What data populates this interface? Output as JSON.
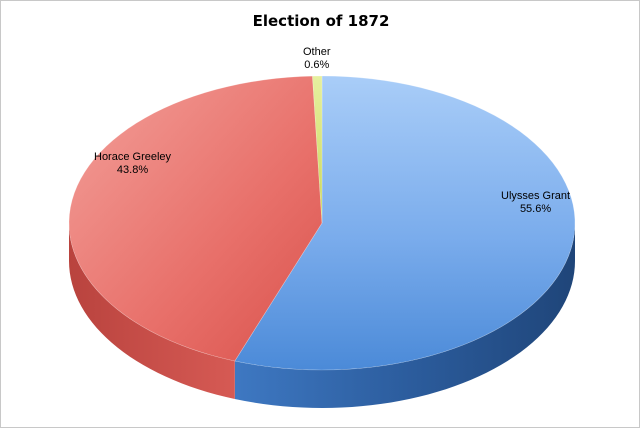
{
  "chart_data": {
    "type": "pie",
    "title": "Election of 1872",
    "slices": [
      {
        "label": "Ulysses Grant",
        "value": 55.6,
        "value_label": "55.6%",
        "color": "#5f97e0"
      },
      {
        "label": "Horace Greeley",
        "value": 43.8,
        "value_label": "43.8%",
        "color": "#e3625c"
      },
      {
        "label": "Other",
        "value": 0.6,
        "value_label": "0.6%",
        "color": "#d8e67a"
      }
    ],
    "legend": "none",
    "style": "3d"
  }
}
